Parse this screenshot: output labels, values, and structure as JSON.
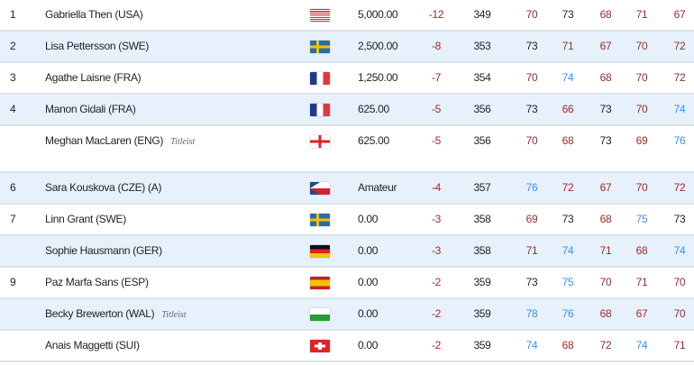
{
  "par": 73,
  "colors": {
    "under_par": "#9b2a2a",
    "par": "#222222",
    "over_par": "#3d8ef0",
    "alt_row": "#e6f1fc"
  },
  "players": [
    {
      "pos": "1",
      "name": "Gabriella Then (USA)",
      "flag": "flag-usa",
      "money": "5,000.00",
      "to_par": "-12",
      "total": "349",
      "rounds": [
        "70",
        "73",
        "68",
        "71",
        "67"
      ]
    },
    {
      "pos": "2",
      "name": "Lisa Pettersson (SWE)",
      "flag": "flag-swe",
      "money": "2,500.00",
      "to_par": "-8",
      "total": "353",
      "rounds": [
        "73",
        "71",
        "67",
        "70",
        "72"
      ]
    },
    {
      "pos": "3",
      "name": "Agathe Laisne (FRA)",
      "flag": "flag-fra",
      "money": "1,250.00",
      "to_par": "-7",
      "total": "354",
      "rounds": [
        "70",
        "74",
        "68",
        "70",
        "72"
      ]
    },
    {
      "pos": "4",
      "name": "Manon Gidali (FRA)",
      "flag": "flag-fra",
      "money": "625.00",
      "to_par": "-5",
      "total": "356",
      "rounds": [
        "73",
        "66",
        "73",
        "70",
        "74"
      ]
    },
    {
      "pos": "",
      "name": "Meghan MacLaren (ENG)",
      "logo": "Titleist",
      "flag": "flag-eng",
      "money": "625.00",
      "to_par": "-5",
      "total": "356",
      "rounds": [
        "70",
        "68",
        "73",
        "69",
        "76"
      ]
    },
    {
      "pos": "6",
      "name": "Sara Kouskova (CZE) (A)",
      "flag": "flag-cze",
      "money": "Amateur",
      "to_par": "-4",
      "total": "357",
      "rounds": [
        "76",
        "72",
        "67",
        "70",
        "72"
      ]
    },
    {
      "pos": "7",
      "name": "Linn Grant (SWE)",
      "flag": "flag-swe",
      "money": "0.00",
      "to_par": "-3",
      "total": "358",
      "rounds": [
        "69",
        "73",
        "68",
        "75",
        "73"
      ]
    },
    {
      "pos": "",
      "name": "Sophie Hausmann (GER)",
      "flag": "flag-ger",
      "money": "0.00",
      "to_par": "-3",
      "total": "358",
      "rounds": [
        "71",
        "74",
        "71",
        "68",
        "74"
      ]
    },
    {
      "pos": "9",
      "name": "Paz Marfa Sans (ESP)",
      "flag": "flag-esp",
      "money": "0.00",
      "to_par": "-2",
      "total": "359",
      "rounds": [
        "73",
        "75",
        "70",
        "71",
        "70"
      ]
    },
    {
      "pos": "",
      "name": "Becky Brewerton (WAL)",
      "logo": "Titleist",
      "flag": "flag-wal",
      "money": "0.00",
      "to_par": "-2",
      "total": "359",
      "rounds": [
        "78",
        "76",
        "68",
        "67",
        "70"
      ]
    },
    {
      "pos": "",
      "name": "Anais Maggetti (SUI)",
      "flag": "flag-sui",
      "money": "0.00",
      "to_par": "-2",
      "total": "359",
      "rounds": [
        "74",
        "68",
        "72",
        "74",
        "71"
      ]
    }
  ]
}
